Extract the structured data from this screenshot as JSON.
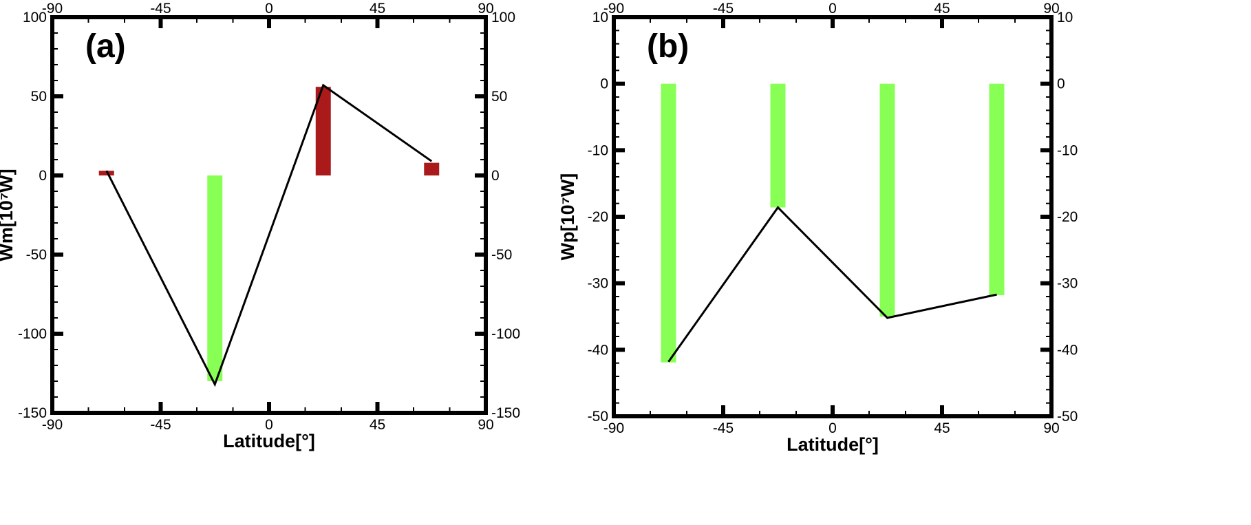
{
  "chart_data": [
    {
      "type": "bar",
      "panel_label": "(a)",
      "xlabel": "Latitude[°]",
      "ylabel": "Wm[10⁷W]",
      "xlim": [
        -90,
        90
      ],
      "ylim": [
        -150,
        100
      ],
      "x_ticks": [
        "-90",
        "-45",
        "0",
        "45",
        "90"
      ],
      "y_ticks": [
        "-150",
        "-100",
        "-50",
        "0",
        "50",
        "100"
      ],
      "bars": [
        {
          "x": -67.5,
          "value": 3,
          "color": "#aa1a1a"
        },
        {
          "x": -22.5,
          "value": -130,
          "color": "#88ff55"
        },
        {
          "x": 22.5,
          "value": 56,
          "color": "#aa1a1a"
        },
        {
          "x": 67.5,
          "value": 8,
          "color": "#aa1a1a"
        }
      ],
      "line": {
        "x": [
          -67.5,
          -22.5,
          22.5,
          67.5
        ],
        "y": [
          3,
          -132,
          57,
          9
        ],
        "color": "#000000"
      }
    },
    {
      "type": "bar",
      "panel_label": "(b)",
      "xlabel": "Latitude[°]",
      "ylabel": "Wp[10⁷W]",
      "xlim": [
        -90,
        90
      ],
      "ylim": [
        -50,
        10
      ],
      "x_ticks": [
        "-90",
        "-45",
        "0",
        "45",
        "90"
      ],
      "y_ticks": [
        "-50",
        "-40",
        "-30",
        "-20",
        "-10",
        "0",
        "10"
      ],
      "bars": [
        {
          "x": -67.5,
          "value": -41.9,
          "color": "#88ff55"
        },
        {
          "x": -22.5,
          "value": -18.6,
          "color": "#88ff55"
        },
        {
          "x": 22.5,
          "value": -35,
          "color": "#88ff55"
        },
        {
          "x": 67.5,
          "value": -31.8,
          "color": "#88ff55"
        }
      ],
      "line": {
        "x": [
          -67.5,
          -22.5,
          22.5,
          67.5
        ],
        "y": [
          -41.8,
          -18.6,
          -35.2,
          -31.7
        ],
        "color": "#000000"
      }
    }
  ]
}
